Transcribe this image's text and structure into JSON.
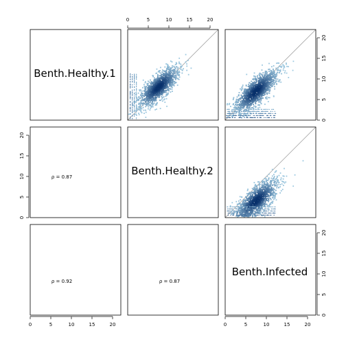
{
  "chart_data": {
    "type": "scatter",
    "layout": "pairs-matrix",
    "variables": [
      "Benth.Healthy.1",
      "Benth.Healthy.2",
      "Benth.Infected"
    ],
    "axis_range": [
      0,
      22
    ],
    "ticks": [
      0,
      5,
      10,
      15,
      20
    ],
    "identity_line": true,
    "point_rendering": "smoothed-density (blue scale)",
    "colors": {
      "density_low": "#9ecae1",
      "density_high": "#08306b",
      "identity_line": "#a6a6a6",
      "frame": "#000000"
    },
    "correlations": [
      {
        "pair": [
          "Benth.Healthy.1",
          "Benth.Healthy.2"
        ],
        "label": "ρ = 0.87",
        "value": 0.87
      },
      {
        "pair": [
          "Benth.Healthy.1",
          "Benth.Infected"
        ],
        "label": "ρ = 0.92",
        "value": 0.92
      },
      {
        "pair": [
          "Benth.Healthy.2",
          "Benth.Infected"
        ],
        "label": "ρ = 0.87",
        "value": 0.87
      }
    ],
    "scatter_panels": [
      {
        "x_var": "Benth.Healthy.2",
        "y_var": "Benth.Healthy.1",
        "center": [
          7.5,
          8.0
        ],
        "spread": 2.6,
        "stripes_at_low_x": true
      },
      {
        "x_var": "Benth.Infected",
        "y_var": "Benth.Healthy.1",
        "center": [
          7.5,
          7.0
        ],
        "spread": 2.8,
        "stripes_at_low_y": true
      },
      {
        "x_var": "Benth.Infected",
        "y_var": "Benth.Healthy.2",
        "center": [
          7.5,
          4.0
        ],
        "spread": 2.8,
        "stripes_at_low_y": true
      }
    ]
  }
}
